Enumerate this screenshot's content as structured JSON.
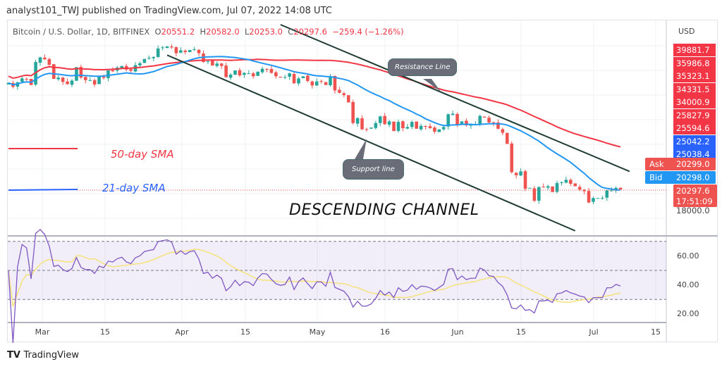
{
  "header": {
    "published": "analyst101_TWJ published on TradingView.com, Jul 07, 2022 14:08 UTC"
  },
  "legend": {
    "symbol": "Bitcoin / U.S. Dollar, 1D, BITFINEX",
    "o_label": "O",
    "o": "20551.2",
    "h_label": "H",
    "h": "20582.0",
    "l_label": "L",
    "l": "20253.0",
    "c_label": "C",
    "c": "20297.6",
    "change": "−259.4 (−1.26%)"
  },
  "price_axis": {
    "currency": "USD",
    "labels": [
      "39881.7",
      "35986.8",
      "35323.1",
      "34331.5",
      "34000.9",
      "25827.9",
      "25594.6",
      "25042.2",
      "25038.4"
    ],
    "ask_label": "Ask",
    "ask": "20299.0",
    "bid_label": "Bid",
    "bid": "20298.0",
    "last": "20297.6",
    "countdown": "17:51:09",
    "tick": "18000.0"
  },
  "annotations": {
    "sma50": "50-day SMA",
    "sma21": "21-day SMA",
    "resistance": "Resistance Line",
    "support": "Support line",
    "channel": "DESCENDING CHANNEL"
  },
  "rsi_axis": [
    "60.00",
    "40.00",
    "20.00"
  ],
  "date_axis": [
    "Mar",
    "15",
    "Apr",
    "15",
    "May",
    "16",
    "Jun",
    "15",
    "Jul",
    "15"
  ],
  "footer": {
    "brand": "TradingView"
  },
  "colors": {
    "up": "#26a69a",
    "down": "#ef5350",
    "sma50": "#f23645",
    "sma21": "#2196f3",
    "rsi": "#7e57c2",
    "rsi_ma": "#f5e27a",
    "trendline": "#1e3b33"
  },
  "chart_data": {
    "type": "candlestick",
    "title": "Bitcoin / U.S. Dollar, 1D, BITFINEX",
    "x_start": "2022-02-22",
    "x_end": "2022-07-07",
    "y_scale": "log",
    "grid": true,
    "closes_k_usd": [
      38.2,
      37.3,
      38.3,
      39.2,
      39.1,
      37.7,
      43.2,
      44.4,
      43.9,
      42.5,
      39.1,
      39.4,
      38.4,
      37.9,
      38.7,
      41.9,
      39.4,
      38.8,
      38.8,
      37.8,
      39.7,
      39.3,
      41.1,
      40.9,
      41.8,
      42.2,
      41.3,
      41.0,
      42.4,
      42.9,
      44.0,
      44.3,
      44.5,
      46.8,
      47.1,
      47.4,
      47.1,
      45.5,
      46.3,
      45.8,
      46.4,
      46.6,
      45.5,
      43.2,
      43.4,
      42.3,
      42.8,
      42.2,
      39.5,
      40.1,
      41.1,
      39.9,
      40.5,
      40.4,
      39.7,
      40.8,
      41.5,
      41.4,
      40.5,
      39.7,
      39.4,
      39.5,
      40.4,
      38.1,
      39.2,
      39.7,
      38.6,
      37.6,
      38.5,
      38.5,
      37.7,
      39.7,
      36.5,
      36.0,
      35.5,
      34.0,
      30.1,
      31.0,
      29.0,
      29.0,
      29.3,
      30.1,
      31.3,
      29.9,
      30.4,
      28.7,
      30.3,
      29.2,
      29.4,
      30.3,
      29.1,
      29.6,
      29.5,
      29.2,
      28.6,
      29.0,
      29.4,
      31.7,
      31.8,
      29.8,
      30.4,
      29.7,
      29.9,
      29.9,
      31.4,
      31.1,
      30.2,
      30.1,
      29.1,
      28.4,
      26.6,
      22.5,
      22.1,
      22.6,
      20.4,
      20.5,
      19.0,
      20.6,
      20.6,
      20.7,
      20.0,
      21.1,
      21.2,
      21.5,
      21.0,
      20.7,
      20.3,
      20.1,
      18.8,
      19.3,
      19.3,
      19.3,
      20.2,
      20.2,
      20.5,
      20.3
    ],
    "indicators": [
      "SMA 21",
      "SMA 50",
      "RSI 14",
      "RSI MA 14"
    ],
    "rsi_levels": [
      70,
      50,
      30
    ],
    "trendlines": [
      {
        "name": "Resistance Line",
        "from": {
          "date": "2022-04-23",
          "price": 53900
        },
        "to": {
          "date": "2022-07-09",
          "price": 22600
        }
      },
      {
        "name": "Support line",
        "from": {
          "date": "2022-03-29",
          "price": 45000
        },
        "to": {
          "date": "2022-06-27",
          "price": 15900
        }
      }
    ]
  }
}
